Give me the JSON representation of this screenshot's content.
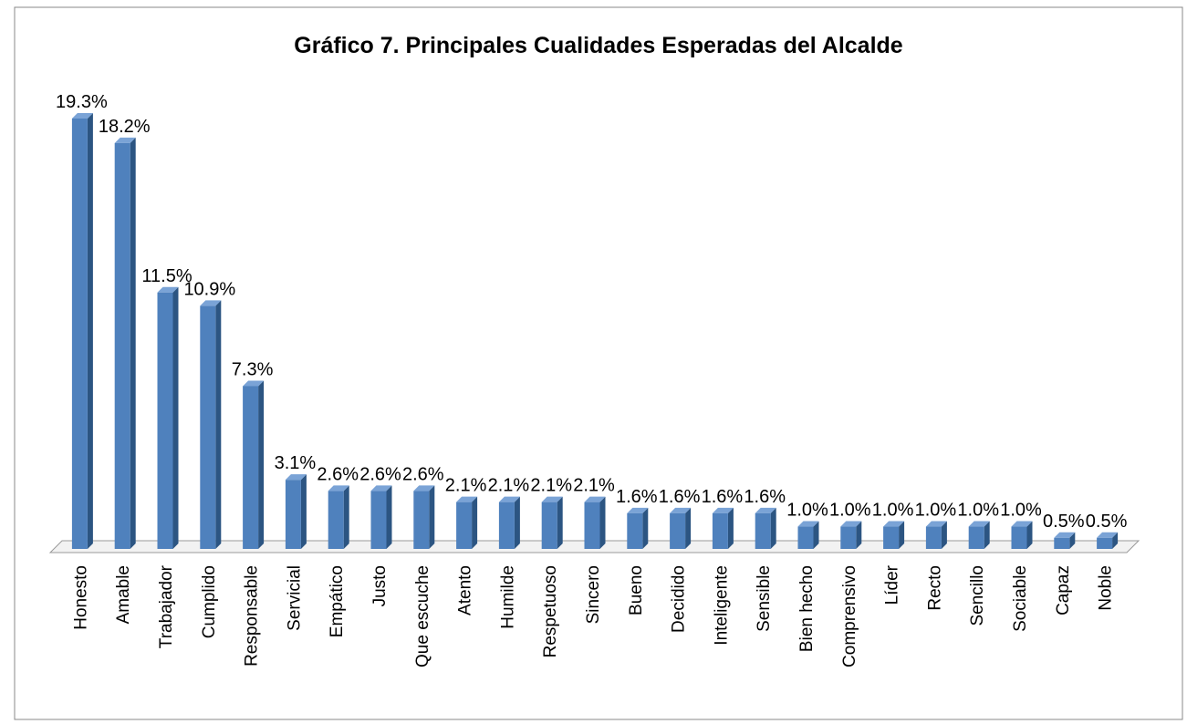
{
  "chart_data": {
    "type": "bar",
    "title": "Gráfico 7. Principales Cualidades Esperadas del Alcalde",
    "categories": [
      "Honesto",
      "Amable",
      "Trabajador",
      "Cumplido",
      "Responsable",
      "Servicial",
      "Empático",
      "Justo",
      "Que escuche",
      "Atento",
      "Humilde",
      "Respetuoso",
      "Sincero",
      "Bueno",
      "Decidido",
      "Inteligente",
      "Sensible",
      "Bien hecho",
      "Comprensivo",
      "Líder",
      "Recto",
      "Sencillo",
      "Sociable",
      "Capaz",
      "Noble"
    ],
    "values": [
      19.3,
      18.2,
      11.5,
      10.9,
      7.3,
      3.1,
      2.6,
      2.6,
      2.6,
      2.1,
      2.1,
      2.1,
      2.1,
      1.6,
      1.6,
      1.6,
      1.6,
      1.0,
      1.0,
      1.0,
      1.0,
      1.0,
      1.0,
      0.5,
      0.5
    ],
    "value_labels": [
      "19.3%",
      "18.2%",
      "11.5%",
      "10.9%",
      "7.3%",
      "3.1%",
      "2.6%",
      "2.6%",
      "2.6%",
      "2.1%",
      "2.1%",
      "2.1%",
      "2.1%",
      "1.6%",
      "1.6%",
      "1.6%",
      "1.6%",
      "1.0%",
      "1.0%",
      "1.0%",
      "1.0%",
      "1.0%",
      "1.0%",
      "0.5%",
      "0.5%"
    ],
    "color": "#4f81bd"
  }
}
